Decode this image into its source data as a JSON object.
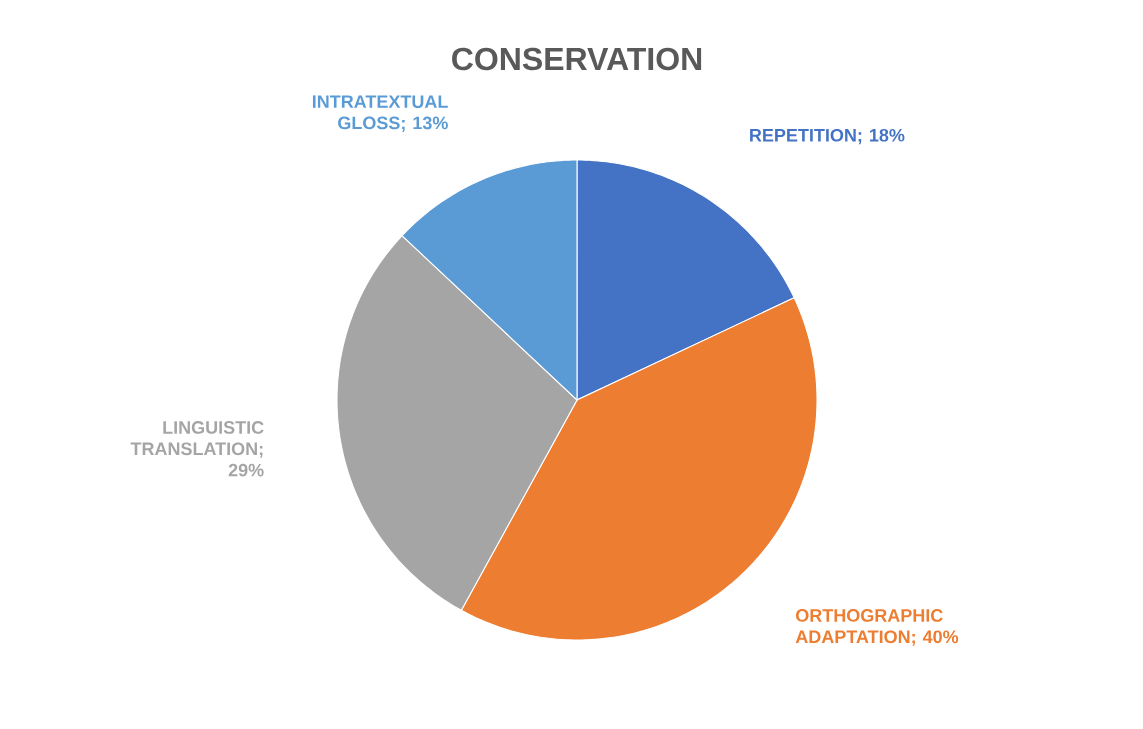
{
  "chart_data": {
    "type": "pie",
    "title": "CONSERVATION",
    "categories": [
      "REPETITION",
      "ORTHOGRAPHIC ADAPTATION",
      "LINGUISTIC TRANSLATION",
      "INTRATEXTUAL GLOSS"
    ],
    "values": [
      18,
      40,
      29,
      13
    ],
    "value_labels": [
      "; 18%",
      "; 40%",
      "; 29%",
      "; 13%"
    ],
    "colors": [
      "#4472c4",
      "#ed7d31",
      "#a5a5a5",
      "#5b9bd5"
    ]
  }
}
